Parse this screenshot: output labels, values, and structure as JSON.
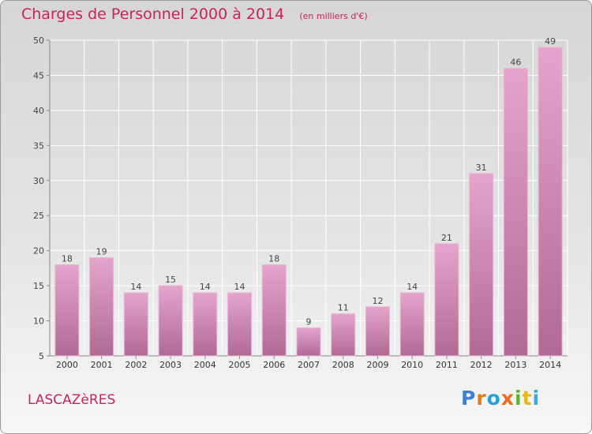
{
  "chart_data": {
    "type": "bar",
    "title": "Charges de Personnel 2000 à 2014",
    "subtitle": "(en milliers d'€)",
    "categories": [
      "2000",
      "2001",
      "2002",
      "2003",
      "2004",
      "2005",
      "2006",
      "2007",
      "2008",
      "2009",
      "2010",
      "2011",
      "2012",
      "2013",
      "2014"
    ],
    "values": [
      18,
      19,
      14,
      15,
      14,
      14,
      18,
      9,
      11,
      12,
      14,
      21,
      31,
      46,
      49
    ],
    "ylim": [
      5,
      50
    ],
    "yticks": [
      5,
      10,
      15,
      20,
      25,
      30,
      35,
      40,
      45,
      50
    ],
    "grid": true,
    "bar_color": "#d98ab8",
    "title_color": "#c8245a"
  },
  "footer": {
    "commune": "LASCAZèRES",
    "brand": "Proxiti"
  }
}
